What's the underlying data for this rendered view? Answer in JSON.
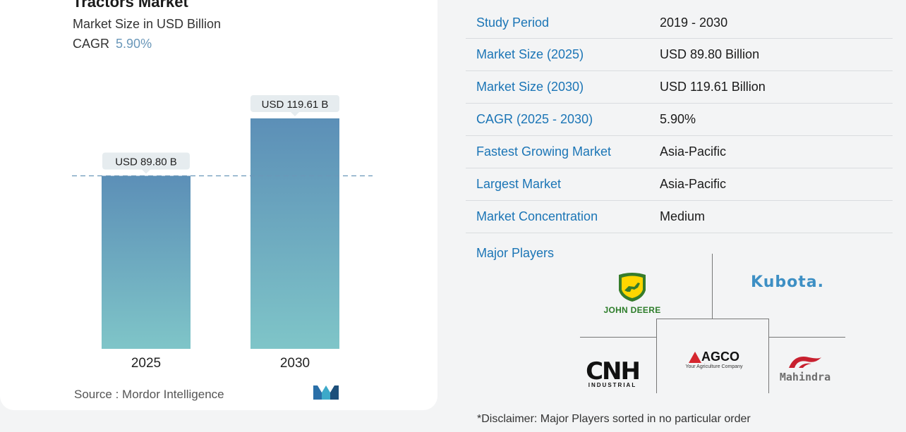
{
  "chart_card": {
    "title": "Tractors Market",
    "subtitle": "Market Size in USD Billion",
    "cagr_label": "CAGR",
    "cagr_value": "5.90%",
    "source": "Source :  Mordor Intelligence"
  },
  "chart_data": {
    "type": "bar",
    "title": "Tractors Market",
    "subtitle": "Market Size in USD Billion",
    "categories": [
      "2025",
      "2030"
    ],
    "values": [
      89.8,
      119.61
    ],
    "data_labels": [
      "USD 89.80 B",
      "USD 119.61 B"
    ],
    "ylim": [
      0,
      119.61
    ],
    "reference_line": 89.8,
    "grid": false,
    "legend": "none",
    "colors": {
      "bar_top": "#5c8fb7",
      "bar_bottom": "#7fc5c8",
      "label_bg": "#e6ecef",
      "ref_line": "#6a97b9"
    }
  },
  "info": {
    "rows": [
      {
        "label": "Study Period",
        "value": "2019 - 2030"
      },
      {
        "label": "Market Size (2025)",
        "value": "USD 89.80 Billion"
      },
      {
        "label": "Market Size (2030)",
        "value": "USD 119.61 Billion"
      },
      {
        "label": "CAGR (2025 - 2030)",
        "value": "5.90%"
      },
      {
        "label": "Fastest Growing Market",
        "value": "Asia-Pacific"
      },
      {
        "label": "Largest Market",
        "value": "Asia-Pacific"
      },
      {
        "label": "Market Concentration",
        "value": "Medium"
      }
    ],
    "major_players_title": "Major Players"
  },
  "players": {
    "john_deere": "JOHN DEERE",
    "kubota": "Kubota.",
    "cnh": "CNH",
    "cnh_sub": "INDUSTRIAL",
    "agco": "AGCO",
    "agco_sub": "Your Agriculture Company",
    "mahindra": "Mahindra"
  },
  "disclaimer": "*Disclaimer: Major Players sorted in no particular order",
  "accent_color": "#1b75b6"
}
